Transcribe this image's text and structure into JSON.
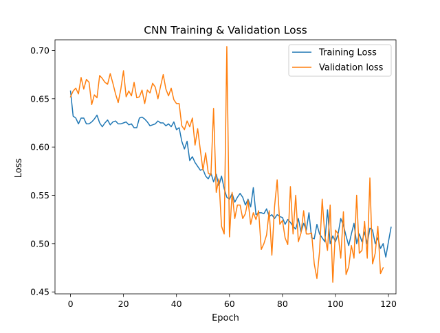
{
  "chart_data": {
    "type": "line",
    "title": "CNN Training & Validation Loss",
    "xlabel": "Epoch",
    "ylabel": "Loss",
    "xlim": [
      -5.85,
      122.85
    ],
    "ylim": [
      0.448,
      0.711
    ],
    "x_ticks": [
      0,
      20,
      40,
      60,
      80,
      100,
      120
    ],
    "x_tick_labels": [
      "0",
      "20",
      "40",
      "60",
      "80",
      "100",
      "120"
    ],
    "y_ticks": [
      0.45,
      0.5,
      0.55,
      0.6,
      0.65,
      0.7
    ],
    "y_tick_labels": [
      "0.45",
      "0.50",
      "0.55",
      "0.60",
      "0.65",
      "0.70"
    ],
    "grid": false,
    "legend_position": "upper right",
    "series": [
      {
        "name": "Training Loss",
        "color": "#1f77b4",
        "values": [
          0.658,
          0.632,
          0.63,
          0.624,
          0.63,
          0.63,
          0.624,
          0.624,
          0.626,
          0.629,
          0.633,
          0.625,
          0.621,
          0.625,
          0.628,
          0.623,
          0.626,
          0.627,
          0.624,
          0.624,
          0.625,
          0.626,
          0.623,
          0.624,
          0.62,
          0.62,
          0.63,
          0.631,
          0.629,
          0.626,
          0.622,
          0.623,
          0.624,
          0.627,
          0.625,
          0.625,
          0.622,
          0.624,
          0.621,
          0.626,
          0.618,
          0.62,
          0.606,
          0.598,
          0.606,
          0.586,
          0.59,
          0.584,
          0.58,
          0.576,
          0.577,
          0.57,
          0.567,
          0.573,
          0.564,
          0.572,
          0.56,
          0.57,
          0.557,
          0.548,
          0.546,
          0.552,
          0.543,
          0.548,
          0.552,
          0.548,
          0.54,
          0.546,
          0.538,
          0.558,
          0.53,
          0.532,
          0.532,
          0.531,
          0.536,
          0.528,
          0.53,
          0.526,
          0.53,
          0.528,
          0.527,
          0.52,
          0.525,
          0.522,
          0.518,
          0.515,
          0.526,
          0.512,
          0.521,
          0.514,
          0.532,
          0.506,
          0.505,
          0.52,
          0.51,
          0.506,
          0.502,
          0.535,
          0.5,
          0.508,
          0.502,
          0.51,
          0.526,
          0.519,
          0.508,
          0.498,
          0.51,
          0.521,
          0.5,
          0.51,
          0.502,
          0.512,
          0.5,
          0.516,
          0.514,
          0.5,
          0.506,
          0.495,
          0.5,
          0.486,
          0.502,
          0.517
        ]
      },
      {
        "name": "Validation loss",
        "color": "#ff7f0e",
        "values": [
          0.652,
          0.658,
          0.661,
          0.655,
          0.672,
          0.66,
          0.67,
          0.667,
          0.644,
          0.654,
          0.651,
          0.674,
          0.671,
          0.667,
          0.665,
          0.676,
          0.666,
          0.655,
          0.646,
          0.66,
          0.679,
          0.652,
          0.658,
          0.653,
          0.667,
          0.651,
          0.652,
          0.659,
          0.645,
          0.659,
          0.656,
          0.666,
          0.662,
          0.65,
          0.663,
          0.675,
          0.66,
          0.653,
          0.661,
          0.649,
          0.645,
          0.645,
          0.622,
          0.618,
          0.627,
          0.621,
          0.63,
          0.602,
          0.619,
          0.597,
          0.576,
          0.594,
          0.573,
          0.571,
          0.64,
          0.553,
          0.567,
          0.518,
          0.51,
          0.704,
          0.507,
          0.553,
          0.526,
          0.54,
          0.54,
          0.526,
          0.531,
          0.545,
          0.52,
          0.532,
          0.525,
          0.534,
          0.494,
          0.5,
          0.509,
          0.534,
          0.488,
          0.538,
          0.566,
          0.52,
          0.524,
          0.506,
          0.499,
          0.559,
          0.51,
          0.55,
          0.502,
          0.511,
          0.534,
          0.51,
          0.51,
          0.511,
          0.479,
          0.464,
          0.492,
          0.546,
          0.508,
          0.493,
          0.54,
          0.46,
          0.514,
          0.51,
          0.485,
          0.533,
          0.468,
          0.476,
          0.498,
          0.485,
          0.55,
          0.49,
          0.493,
          0.523,
          0.485,
          0.568,
          0.479,
          0.49,
          0.518,
          0.469,
          0.475
        ]
      }
    ]
  }
}
